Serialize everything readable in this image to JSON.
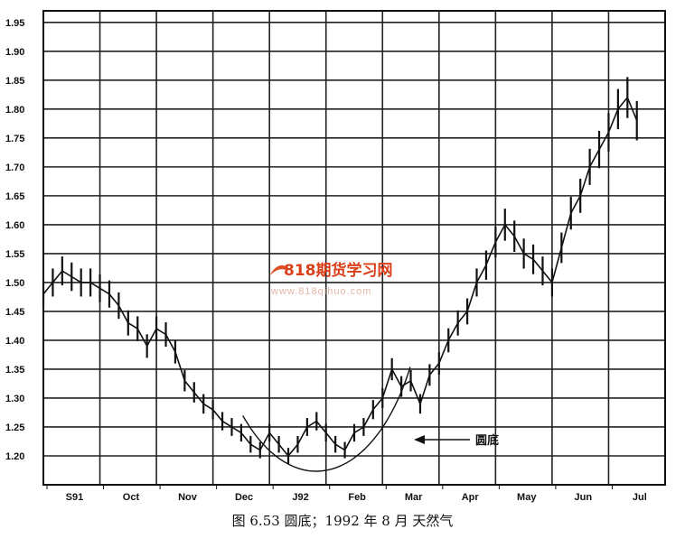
{
  "chart_data": {
    "type": "line",
    "title": "",
    "xlabel": "",
    "ylabel": "",
    "ylim": [
      1.15,
      1.97
    ],
    "y_ticks": [
      "1.20",
      "1.25",
      "1.30",
      "1.35",
      "1.40",
      "1.45",
      "1.50",
      "1.55",
      "1.60",
      "1.65",
      "1.70",
      "1.75",
      "1.80",
      "1.85",
      "1.90",
      "1.95"
    ],
    "x_ticks": [
      "S91",
      "Oct",
      "Nov",
      "Dec",
      "J92",
      "Feb",
      "Mar",
      "Apr",
      "May",
      "Jun",
      "Jul"
    ],
    "grid": true,
    "x": [
      0,
      5,
      10,
      15,
      20,
      25,
      30,
      35,
      40,
      45,
      50,
      55,
      60,
      65,
      70,
      75,
      80,
      85,
      90,
      95,
      100,
      105,
      110,
      115,
      120,
      125,
      130,
      135,
      140,
      145,
      150,
      155,
      160,
      165,
      170,
      175,
      180,
      185,
      190,
      195,
      200,
      205,
      210,
      215,
      220,
      225,
      230,
      235,
      240,
      245,
      250,
      255,
      260,
      265,
      270,
      275,
      280,
      285,
      290,
      295,
      300,
      305,
      310,
      315
    ],
    "values": [
      1.48,
      1.5,
      1.52,
      1.51,
      1.5,
      1.5,
      1.49,
      1.48,
      1.46,
      1.43,
      1.42,
      1.39,
      1.42,
      1.41,
      1.38,
      1.33,
      1.31,
      1.29,
      1.28,
      1.26,
      1.25,
      1.24,
      1.22,
      1.21,
      1.24,
      1.22,
      1.2,
      1.22,
      1.25,
      1.26,
      1.24,
      1.22,
      1.21,
      1.24,
      1.25,
      1.28,
      1.3,
      1.35,
      1.32,
      1.33,
      1.29,
      1.34,
      1.36,
      1.4,
      1.43,
      1.45,
      1.5,
      1.53,
      1.57,
      1.6,
      1.58,
      1.55,
      1.54,
      1.52,
      1.5,
      1.56,
      1.62,
      1.65,
      1.7,
      1.73,
      1.76,
      1.8,
      1.82,
      1.78
    ]
  },
  "annotation": {
    "label": "圆底"
  },
  "caption": "图 6.53  圆底；1992 年 8 月  天然气",
  "watermark": {
    "title": "818期货学习网",
    "url": "www.818qihuo.com"
  }
}
